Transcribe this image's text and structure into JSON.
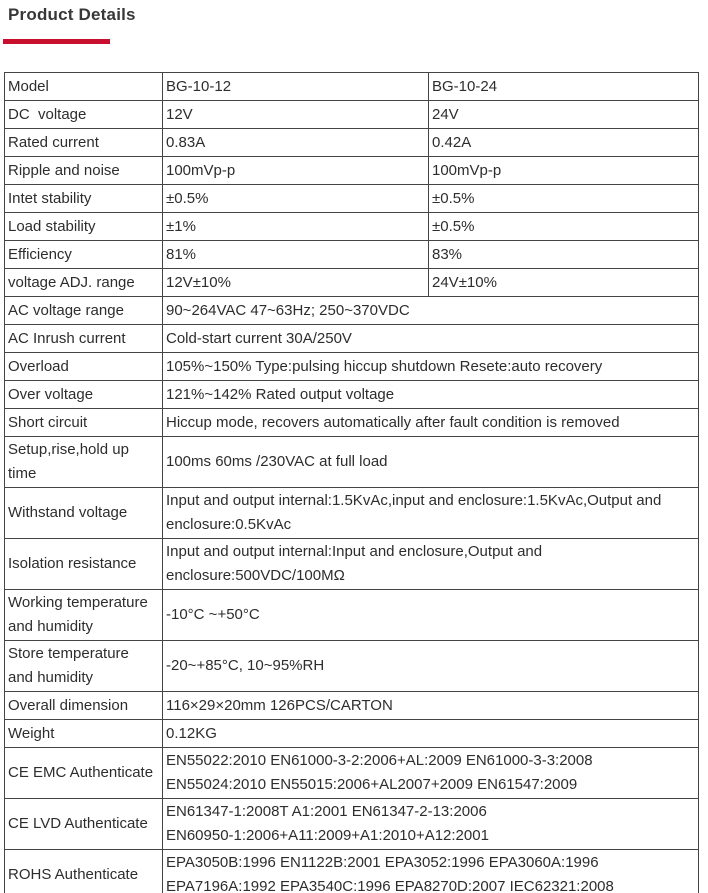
{
  "header": {
    "title": "Product Details",
    "accent_color": "#c8102e"
  },
  "spec_table": {
    "rows": [
      {
        "label": "Model",
        "values": [
          "BG-10-12",
          "BG-10-24"
        ]
      },
      {
        "label": "DC  voltage",
        "values": [
          "12V",
          "24V"
        ]
      },
      {
        "label": "Rated current",
        "values": [
          "0.83A",
          "0.42A"
        ]
      },
      {
        "label": "Ripple and noise",
        "values": [
          "100mVp-p",
          "100mVp-p"
        ]
      },
      {
        "label": "Intet stability",
        "values": [
          "±0.5%",
          "±0.5%"
        ]
      },
      {
        "label": "Load stability",
        "values": [
          "±1%",
          "±0.5%"
        ]
      },
      {
        "label": "Efficiency",
        "values": [
          "81%",
          "83%"
        ]
      },
      {
        "label": "voltage ADJ. range",
        "values": [
          "12V±10%",
          "24V±10%"
        ]
      },
      {
        "label": "AC voltage range",
        "value": "90~264VAC 47~63Hz; 250~370VDC"
      },
      {
        "label": "AC Inrush current",
        "value": "Cold-start current 30A/250V"
      },
      {
        "label": "Overload",
        "value": "105%~150% Type:pulsing hiccup shutdown Resete:auto recovery"
      },
      {
        "label": "Over voltage",
        "value": "121%~142% Rated output voltage"
      },
      {
        "label": "Short circuit",
        "value": "Hiccup mode, recovers automatically after fault condition is removed"
      },
      {
        "label": "Setup,rise,hold up\ntime",
        "value": "100ms 60ms /230VAC at full load"
      },
      {
        "label": "Withstand voltage",
        "value": "Input and output internal:1.5KvAc,input and enclosure:1.5KvAc,Output and\nenclosure:0.5KvAc"
      },
      {
        "label": "Isolation resistance",
        "value": "Input and output internal:Input and enclosure,Output and\nenclosure:500VDC/100MΩ"
      },
      {
        "label": "Working temperature\nand humidity",
        "value": "-10°C ~+50°C"
      },
      {
        "label": "Store temperature\nand humidity",
        "value": "-20~+85°C, 10~95%RH"
      },
      {
        "label": "Overall dimension",
        "value": "116×29×20mm 126PCS/CARTON"
      },
      {
        "label": "Weight",
        "value": "0.12KG"
      },
      {
        "label": "CE EMC Authenticate",
        "value": "EN55022:2010 EN61000-3-2:2006+AL:2009 EN61000-3-3:2008\nEN55024:2010 EN55015:2006+AL2007+2009 EN61547:2009"
      },
      {
        "label": "CE LVD Authenticate",
        "value": "EN61347-1:2008T A1:2001 EN61347-2-13:2006\nEN60950-1:2006+A11:2009+A1:2010+A12:2001"
      },
      {
        "label": "ROHS Authenticate",
        "value": "EPA3050B:1996 EN1122B:2001 EPA3052:1996 EPA3060A:1996\nEPA7196A:1992 EPA3540C:1996 EPA8270D:2007 IEC62321:2008"
      }
    ]
  }
}
